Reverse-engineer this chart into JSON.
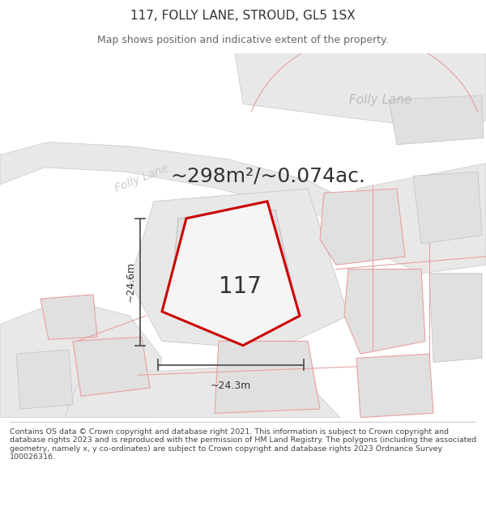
{
  "title": "117, FOLLY LANE, STROUD, GL5 1SX",
  "subtitle": "Map shows position and indicative extent of the property.",
  "area_text": "~298m²/~0.074ac.",
  "property_number": "117",
  "dim_width": "~24.3m",
  "dim_height": "~24.6m",
  "background_color": "#ffffff",
  "road_label_diag": "Folly Lane",
  "road_label_tr": "Folly Lane",
  "footer_text": "Contains OS data © Crown copyright and database right 2021. This information is subject to Crown copyright and database rights 2023 and is reproduced with the permission of HM Land Registry. The polygons (including the associated geometry, namely x, y co-ordinates) are subject to Crown copyright and database rights 2023 Ordnance Survey 100026316.",
  "main_poly_color": "#cc0000",
  "main_poly_fill": "#f0f0f0",
  "parcel_fill": "#e0e0e0",
  "parcel_edge_light": "#e8a0a0",
  "parcel_edge_gray": "#c0c0c0",
  "road_fill": "#e8e8e8",
  "road_edge": "#c8c8c8",
  "dim_color": "#555555",
  "text_color": "#333333",
  "road_label_color": "#bbbbbb",
  "folly_diag_color": "#cccccc",
  "title_fontsize": 11,
  "subtitle_fontsize": 9,
  "area_fontsize": 18,
  "number_fontsize": 20,
  "dim_fontsize": 9,
  "road_label_fontsize": 11,
  "folly_diag_fontsize": 10
}
